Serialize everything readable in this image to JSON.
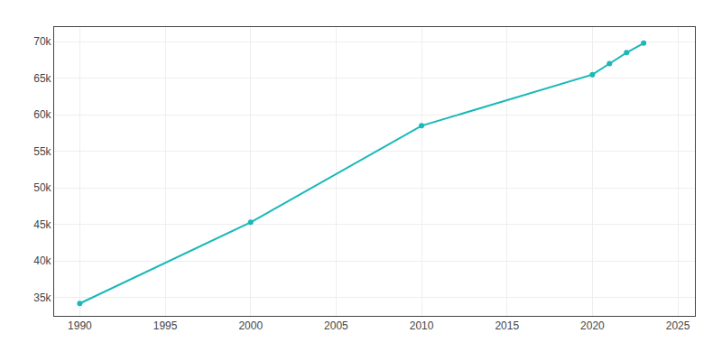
{
  "chart_data": {
    "type": "line",
    "x": [
      1990,
      2000,
      2010,
      2020,
      2021,
      2022,
      2023
    ],
    "values": [
      34200,
      45300,
      58500,
      65500,
      67000,
      68500,
      69800
    ],
    "color": "#1ab8b8",
    "marker": "circle",
    "line_style": "solid",
    "xlim": [
      1988.5,
      2026
    ],
    "ylim": [
      32500,
      72000
    ],
    "xticks": [
      1990,
      1995,
      2000,
      2005,
      2010,
      2015,
      2020,
      2025
    ],
    "yticks": [
      {
        "value": 35000,
        "label": "35k"
      },
      {
        "value": 40000,
        "label": "40k"
      },
      {
        "value": 45000,
        "label": "45k"
      },
      {
        "value": 50000,
        "label": "50k"
      },
      {
        "value": 55000,
        "label": "55k"
      },
      {
        "value": 60000,
        "label": "60k"
      },
      {
        "value": 65000,
        "label": "65k"
      },
      {
        "value": 70000,
        "label": "70k"
      }
    ],
    "grid": true
  }
}
